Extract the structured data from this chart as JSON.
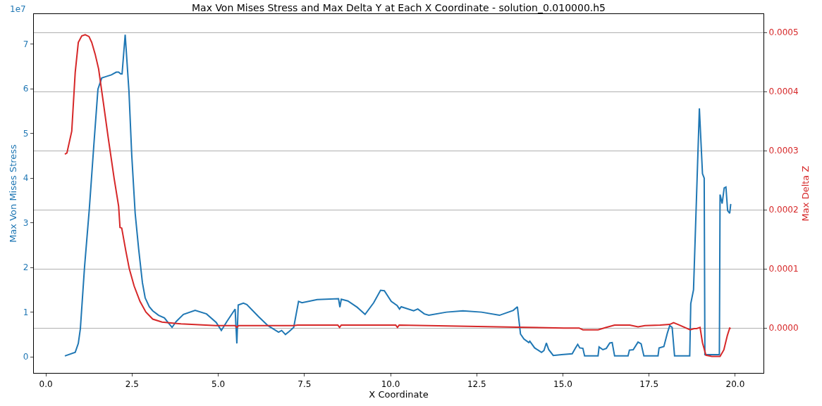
{
  "chart_data": {
    "type": "line",
    "title": "Max Von Mises Stress and Max Delta Y at Each X Coordinate - solution_0.010000.h5",
    "xlabel": "X Coordinate",
    "ylabel": "Max Von Mises Stress",
    "y2label": "Max Delta Z",
    "annotations": [
      "1e7"
    ],
    "grid": "y2",
    "marker": "none",
    "line_style": "solid",
    "xlim": [
      -0.35,
      20.82
    ],
    "xticks": [
      {
        "value": 0,
        "label": "0.0"
      },
      2.5,
      {
        "value": 5,
        "label": "5.0"
      },
      7.5,
      {
        "value": 10,
        "label": "10.0"
      },
      12.5,
      {
        "value": 15,
        "label": "15.0"
      },
      17.5,
      {
        "value": 20,
        "label": "20.0"
      }
    ],
    "ylim": [
      -0.36,
      7.67
    ],
    "yticks": [
      0,
      1,
      2,
      3,
      4,
      5,
      6,
      7
    ],
    "y2lim": [
      -7.6e-05,
      0.000531
    ],
    "y2ticks": [
      {
        "value": 0,
        "label": "0.0000"
      },
      {
        "value": 0.0001,
        "label": "0.0001"
      },
      {
        "value": 0.0002,
        "label": "0.0002"
      },
      {
        "value": 0.0003,
        "label": "0.0003"
      },
      {
        "value": 0.0004,
        "label": "0.0004"
      },
      {
        "value": 0.0005,
        "label": "0.0005"
      }
    ],
    "series": [
      {
        "color": "#1f77b4",
        "x": [
          0.55,
          0.85,
          0.94,
          1.0,
          1.12,
          1.26,
          1.39,
          1.51,
          1.62,
          1.74,
          1.9,
          2.04,
          2.11,
          2.17,
          2.21,
          2.3,
          2.41,
          2.49,
          2.59,
          2.69,
          2.8,
          2.88,
          3.0,
          3.1,
          3.27,
          3.44,
          3.54,
          3.66,
          3.78,
          3.99,
          4.33,
          4.66,
          4.94,
          5.09,
          5.25,
          5.49,
          5.54,
          5.58,
          5.73,
          5.83,
          6.17,
          6.44,
          6.75,
          6.84,
          6.95,
          7.06,
          7.19,
          7.33,
          7.43,
          7.87,
          8.49,
          8.53,
          8.57,
          8.76,
          9.03,
          9.26,
          9.51,
          9.71,
          9.82,
          10.02,
          10.19,
          10.26,
          10.31,
          10.67,
          10.79,
          10.98,
          11.11,
          11.62,
          12.1,
          12.64,
          13.16,
          13.56,
          13.68,
          13.77,
          13.87,
          14.01,
          14.04,
          14.18,
          14.38,
          14.45,
          14.52,
          14.59,
          14.72,
          14.96,
          15.27,
          15.36,
          15.43,
          15.49,
          15.58,
          15.63,
          16.02,
          16.05,
          16.16,
          16.26,
          16.36,
          16.43,
          16.5,
          16.89,
          16.93,
          17.04,
          17.18,
          17.27,
          17.35,
          17.76,
          17.79,
          17.93,
          18.03,
          18.1,
          18.17,
          18.24,
          18.68,
          18.71,
          18.79,
          18.96,
          19.05,
          19.1,
          19.12,
          19.54,
          19.56,
          19.62,
          19.68,
          19.73,
          19.78,
          19.84,
          19.87
        ],
        "values": [
          0.02,
          0.1,
          0.3,
          0.63,
          2.0,
          3.31,
          4.73,
          5.99,
          6.24,
          6.27,
          6.31,
          6.37,
          6.37,
          6.33,
          6.33,
          7.21,
          5.94,
          4.52,
          3.21,
          2.42,
          1.66,
          1.32,
          1.12,
          1.03,
          0.93,
          0.87,
          0.77,
          0.66,
          0.79,
          0.95,
          1.04,
          0.96,
          0.77,
          0.59,
          0.79,
          1.07,
          0.3,
          1.16,
          1.2,
          1.17,
          0.9,
          0.7,
          0.55,
          0.59,
          0.5,
          0.57,
          0.66,
          1.24,
          1.21,
          1.28,
          1.3,
          1.11,
          1.29,
          1.25,
          1.11,
          0.95,
          1.21,
          1.49,
          1.48,
          1.24,
          1.15,
          1.07,
          1.12,
          1.03,
          1.07,
          0.96,
          0.93,
          1.0,
          1.03,
          1.0,
          0.93,
          1.04,
          1.12,
          0.51,
          0.4,
          0.32,
          0.35,
          0.2,
          0.1,
          0.14,
          0.31,
          0.16,
          0.03,
          0.05,
          0.07,
          0.19,
          0.28,
          0.2,
          0.19,
          0.02,
          0.02,
          0.22,
          0.16,
          0.19,
          0.31,
          0.32,
          0.02,
          0.02,
          0.15,
          0.16,
          0.33,
          0.29,
          0.02,
          0.02,
          0.2,
          0.23,
          0.53,
          0.7,
          0.66,
          0.02,
          0.02,
          1.19,
          1.5,
          5.56,
          4.1,
          4.0,
          0.05,
          0.05,
          3.63,
          3.43,
          3.78,
          3.8,
          3.27,
          3.21,
          3.42
        ]
      },
      {
        "color": "#d62728",
        "axis": "y2",
        "x": [
          0.55,
          0.61,
          0.75,
          0.85,
          0.94,
          1.04,
          1.14,
          1.25,
          1.33,
          1.43,
          1.53,
          1.67,
          1.81,
          1.98,
          2.11,
          2.15,
          2.2,
          2.32,
          2.42,
          2.56,
          2.73,
          2.9,
          3.1,
          3.37,
          3.92,
          4.94,
          5.49,
          5.54,
          5.59,
          7.2,
          7.3,
          8.47,
          8.52,
          8.57,
          10.15,
          10.2,
          10.25,
          13.67,
          15.03,
          15.47,
          15.58,
          16.02,
          16.26,
          16.5,
          16.94,
          17.18,
          17.38,
          17.82,
          18.1,
          18.21,
          18.34,
          18.69,
          18.81,
          18.88,
          18.98,
          19.05,
          19.15,
          19.32,
          19.56,
          19.67,
          19.77,
          19.84,
          19.87
        ],
        "values": [
          0.000294,
          0.000296,
          0.000333,
          0.000432,
          0.000483,
          0.000494,
          0.000496,
          0.000493,
          0.000483,
          0.000463,
          0.000438,
          0.00038,
          0.000321,
          0.000253,
          0.000206,
          0.00017,
          0.000169,
          0.00013,
          0.0001,
          7.1e-05,
          4.5e-05,
          2.7e-05,
          1.5e-05,
          1e-05,
          7e-06,
          4e-06,
          4e-06,
          1e-06,
          4e-06,
          4e-06,
          5e-06,
          5e-06,
          1e-06,
          5e-06,
          5e-06,
          1e-06,
          5e-06,
          1.5e-06,
          0,
          0,
          -3e-06,
          -3e-06,
          1e-06,
          5e-06,
          5e-06,
          2e-06,
          4e-06,
          5e-06,
          6e-06,
          9e-06,
          6e-06,
          -3e-06,
          -1e-06,
          -1e-06,
          1e-06,
          -2.5e-05,
          -4.6e-05,
          -4.8e-05,
          -4.8e-05,
          -3.7e-05,
          -1.3e-05,
          0,
          -1e-06
        ]
      }
    ]
  }
}
